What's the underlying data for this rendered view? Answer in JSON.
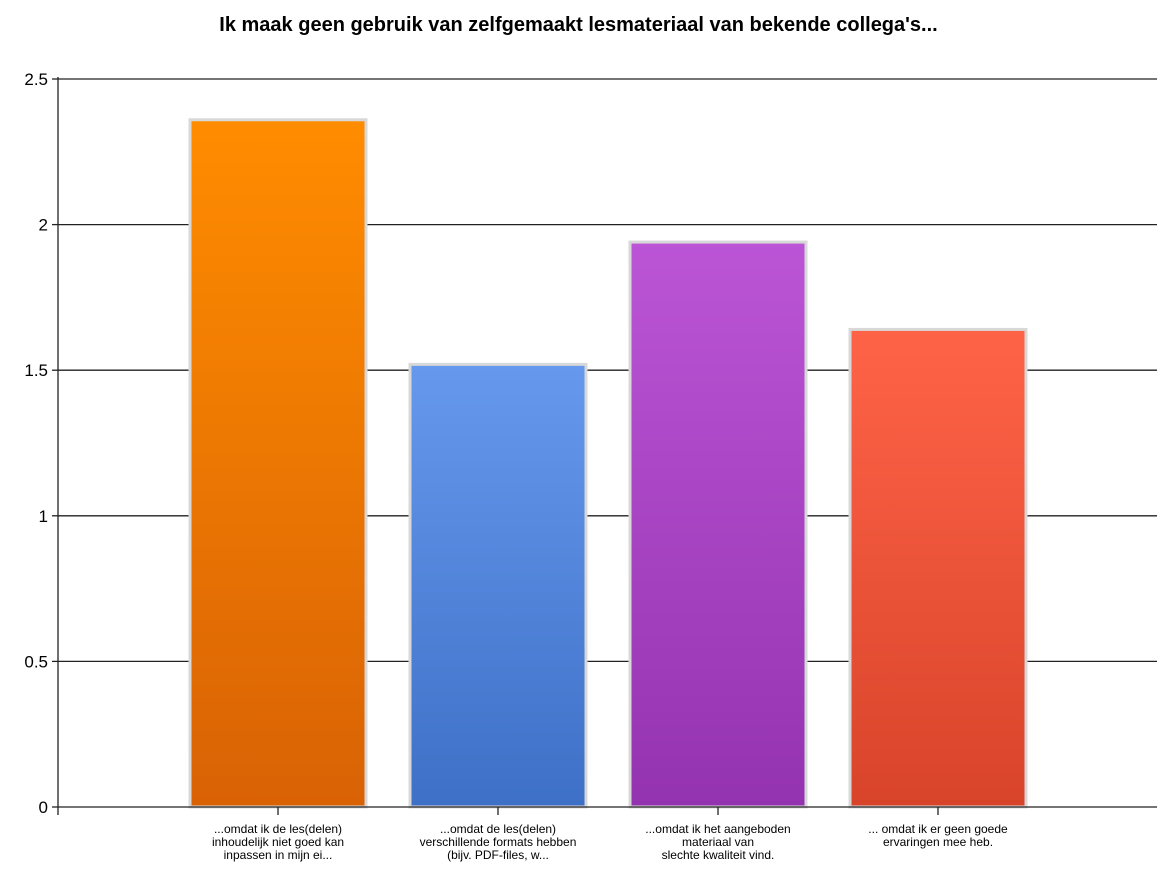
{
  "chart_data": {
    "type": "bar",
    "title": "Ik maak geen gebruik van zelfgemaakt lesmateriaal van bekende collega's...",
    "xlabel": "",
    "ylabel": "",
    "ylim": [
      0,
      2.5
    ],
    "yticks": [
      0,
      0.5,
      1,
      1.5,
      2,
      2.5
    ],
    "ytick_labels": [
      "0",
      "0.5",
      "1",
      "1.5",
      "2",
      "2.5"
    ],
    "grid": true,
    "legend": "none",
    "categories": [
      {
        "lines": [
          "...omdat ik de les(delen)",
          "inhoudelijk niet goed kan",
          "inpassen in mijn ei..."
        ]
      },
      {
        "lines": [
          "...omdat de les(delen)",
          "verschillende formats hebben",
          "(bijv. PDF-files, w..."
        ]
      },
      {
        "lines": [
          "...omdat ik het aangeboden",
          "materiaal van",
          "slechte kwaliteit vind."
        ]
      },
      {
        "lines": [
          "... omdat ik er geen goede",
          "ervaringen mee heb."
        ]
      }
    ],
    "values": [
      2.36,
      1.52,
      1.94,
      1.64
    ],
    "colors": [
      [
        "#ff8c00",
        "#d96205"
      ],
      [
        "#6699ee",
        "#3d70c6"
      ],
      [
        "#bb55d6",
        "#9433af"
      ],
      [
        "#ff6347",
        "#d8442a"
      ]
    ]
  }
}
